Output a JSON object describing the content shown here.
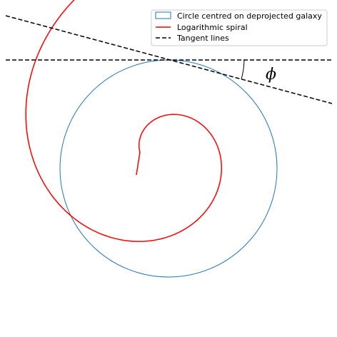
{
  "legend": {
    "items": [
      {
        "label": "Circle centred on deprojected galaxy",
        "kind": "patch",
        "color": "#1f77b4"
      },
      {
        "label": "Logarithmic spiral",
        "kind": "solid-line",
        "color": "#ff0000"
      },
      {
        "label": "Tangent lines",
        "kind": "dashed-line",
        "color": "#000000"
      }
    ]
  },
  "annotation": {
    "angle_symbol": "ϕ"
  },
  "colors": {
    "circle": "#1f77b4",
    "spiral": "#ff0000",
    "tangent": "#000000",
    "angle_arc": "#000000"
  }
}
